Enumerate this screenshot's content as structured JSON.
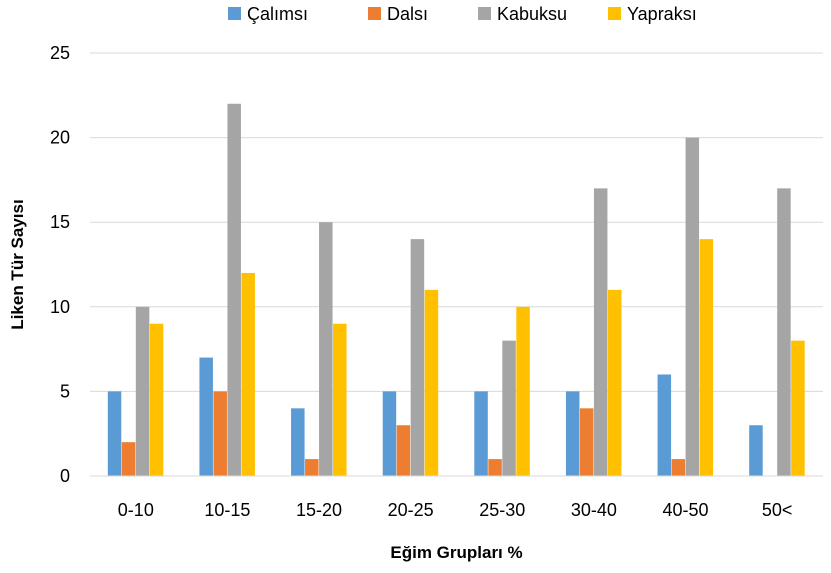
{
  "chart_data": {
    "type": "bar",
    "categories": [
      "0-10",
      "10-15",
      "15-20",
      "20-25",
      "25-30",
      "30-40",
      "40-50",
      "50<"
    ],
    "series": [
      {
        "name": "Çalımsı",
        "color": "#5B9BD5",
        "values": [
          5,
          7,
          4,
          5,
          5,
          5,
          6,
          3
        ]
      },
      {
        "name": "Dalsı",
        "color": "#ED7D31",
        "values": [
          2,
          5,
          1,
          3,
          1,
          4,
          1,
          0
        ]
      },
      {
        "name": "Kabuksu",
        "color": "#A5A5A5",
        "values": [
          10,
          22,
          15,
          14,
          8,
          17,
          20,
          17
        ]
      },
      {
        "name": "Yapraksı",
        "color": "#FFC000",
        "values": [
          9,
          12,
          9,
          11,
          10,
          11,
          14,
          8
        ]
      }
    ],
    "xlabel": "Eğim Grupları %",
    "ylabel": "Liken Tür Sayısı",
    "ylim": [
      0,
      25
    ],
    "yticks": [
      0,
      5,
      10,
      15,
      20,
      25
    ],
    "legend_position": "top",
    "grid": true,
    "gridline_color": "#D9D9D9"
  }
}
